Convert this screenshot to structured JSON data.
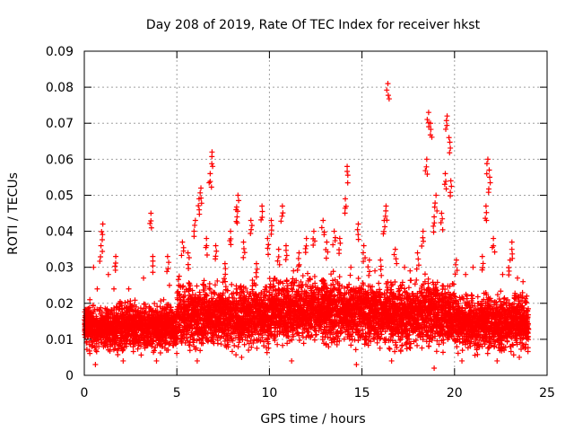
{
  "chart_data": {
    "type": "scatter",
    "title": "Day 208 of 2019, Rate Of TEC Index for receiver hkst",
    "xlabel": "GPS time / hours",
    "ylabel": "ROTI / TECUs",
    "xlim": [
      0,
      25
    ],
    "ylim": [
      0,
      0.09
    ],
    "xticks": [
      "0",
      "5",
      "10",
      "15",
      "20",
      "25"
    ],
    "yticks": [
      "0",
      "0.01",
      "0.02",
      "0.03",
      "0.04",
      "0.05",
      "0.06",
      "0.07",
      "0.08",
      "0.09"
    ],
    "grid": true,
    "marker": "+",
    "series": [
      {
        "name": "ROTI",
        "color": "#ff0000",
        "points": [
          [
            0.1,
            0.013
          ],
          [
            0.3,
            0.021
          ],
          [
            0.5,
            0.03
          ],
          [
            0.7,
            0.024
          ],
          [
            0.9,
            0.036
          ],
          [
            1.0,
            0.042
          ],
          [
            1.3,
            0.028
          ],
          [
            1.6,
            0.024
          ],
          [
            1.7,
            0.033
          ],
          [
            2.0,
            0.02
          ],
          [
            2.4,
            0.024
          ],
          [
            2.8,
            0.019
          ],
          [
            3.2,
            0.027
          ],
          [
            3.6,
            0.045
          ],
          [
            3.7,
            0.033
          ],
          [
            4.1,
            0.019
          ],
          [
            4.5,
            0.033
          ],
          [
            4.6,
            0.025
          ],
          [
            5.1,
            0.025
          ],
          [
            5.3,
            0.037
          ],
          [
            5.6,
            0.034
          ],
          [
            6.0,
            0.043
          ],
          [
            6.2,
            0.049
          ],
          [
            6.3,
            0.052
          ],
          [
            6.6,
            0.038
          ],
          [
            6.8,
            0.056
          ],
          [
            6.9,
            0.062
          ],
          [
            7.1,
            0.036
          ],
          [
            7.6,
            0.031
          ],
          [
            7.9,
            0.04
          ],
          [
            8.2,
            0.046
          ],
          [
            8.3,
            0.05
          ],
          [
            8.6,
            0.037
          ],
          [
            9.0,
            0.043
          ],
          [
            9.3,
            0.031
          ],
          [
            9.6,
            0.047
          ],
          [
            9.9,
            0.038
          ],
          [
            10.1,
            0.043
          ],
          [
            10.5,
            0.035
          ],
          [
            10.7,
            0.047
          ],
          [
            10.9,
            0.036
          ],
          [
            11.3,
            0.029
          ],
          [
            11.6,
            0.034
          ],
          [
            12.0,
            0.038
          ],
          [
            12.4,
            0.04
          ],
          [
            12.9,
            0.043
          ],
          [
            13.1,
            0.037
          ],
          [
            13.5,
            0.04
          ],
          [
            13.8,
            0.038
          ],
          [
            14.1,
            0.049
          ],
          [
            14.2,
            0.058
          ],
          [
            14.4,
            0.03
          ],
          [
            14.8,
            0.042
          ],
          [
            15.1,
            0.036
          ],
          [
            15.4,
            0.032
          ],
          [
            15.7,
            0.029
          ],
          [
            16.0,
            0.032
          ],
          [
            16.2,
            0.043
          ],
          [
            16.3,
            0.047
          ],
          [
            16.4,
            0.081
          ],
          [
            16.8,
            0.035
          ],
          [
            17.3,
            0.03
          ],
          [
            17.6,
            0.029
          ],
          [
            18.0,
            0.034
          ],
          [
            18.3,
            0.04
          ],
          [
            18.5,
            0.06
          ],
          [
            18.6,
            0.073
          ],
          [
            18.7,
            0.07
          ],
          [
            18.9,
            0.044
          ],
          [
            19.0,
            0.05
          ],
          [
            19.3,
            0.045
          ],
          [
            19.5,
            0.056
          ],
          [
            19.6,
            0.072
          ],
          [
            19.7,
            0.066
          ],
          [
            19.8,
            0.054
          ],
          [
            20.1,
            0.032
          ],
          [
            20.6,
            0.028
          ],
          [
            21.0,
            0.03
          ],
          [
            21.5,
            0.033
          ],
          [
            21.7,
            0.047
          ],
          [
            21.8,
            0.06
          ],
          [
            21.9,
            0.055
          ],
          [
            22.1,
            0.038
          ],
          [
            22.6,
            0.028
          ],
          [
            23.0,
            0.032
          ],
          [
            23.1,
            0.037
          ],
          [
            23.4,
            0.027
          ],
          [
            23.7,
            0.026
          ],
          [
            23.9,
            0.022
          ],
          [
            0.6,
            0.003
          ],
          [
            2.1,
            0.004
          ],
          [
            3.9,
            0.004
          ],
          [
            6.1,
            0.004
          ],
          [
            8.5,
            0.005
          ],
          [
            11.2,
            0.004
          ],
          [
            14.7,
            0.003
          ],
          [
            16.6,
            0.004
          ],
          [
            18.9,
            0.002
          ],
          [
            20.4,
            0.004
          ],
          [
            22.3,
            0.004
          ],
          [
            23.5,
            0.005
          ]
        ]
      }
    ],
    "dense_band": {
      "description": "bulk of ROTI samples",
      "segments": [
        {
          "x0": 0,
          "x1": 5,
          "ymin": 0.005,
          "ymax": 0.022
        },
        {
          "x0": 5,
          "x1": 10,
          "ymin": 0.005,
          "ymax": 0.028
        },
        {
          "x0": 10,
          "x1": 15,
          "ymin": 0.006,
          "ymax": 0.03
        },
        {
          "x0": 15,
          "x1": 20,
          "ymin": 0.005,
          "ymax": 0.029
        },
        {
          "x0": 20,
          "x1": 24,
          "ymin": 0.004,
          "ymax": 0.025
        }
      ]
    }
  }
}
